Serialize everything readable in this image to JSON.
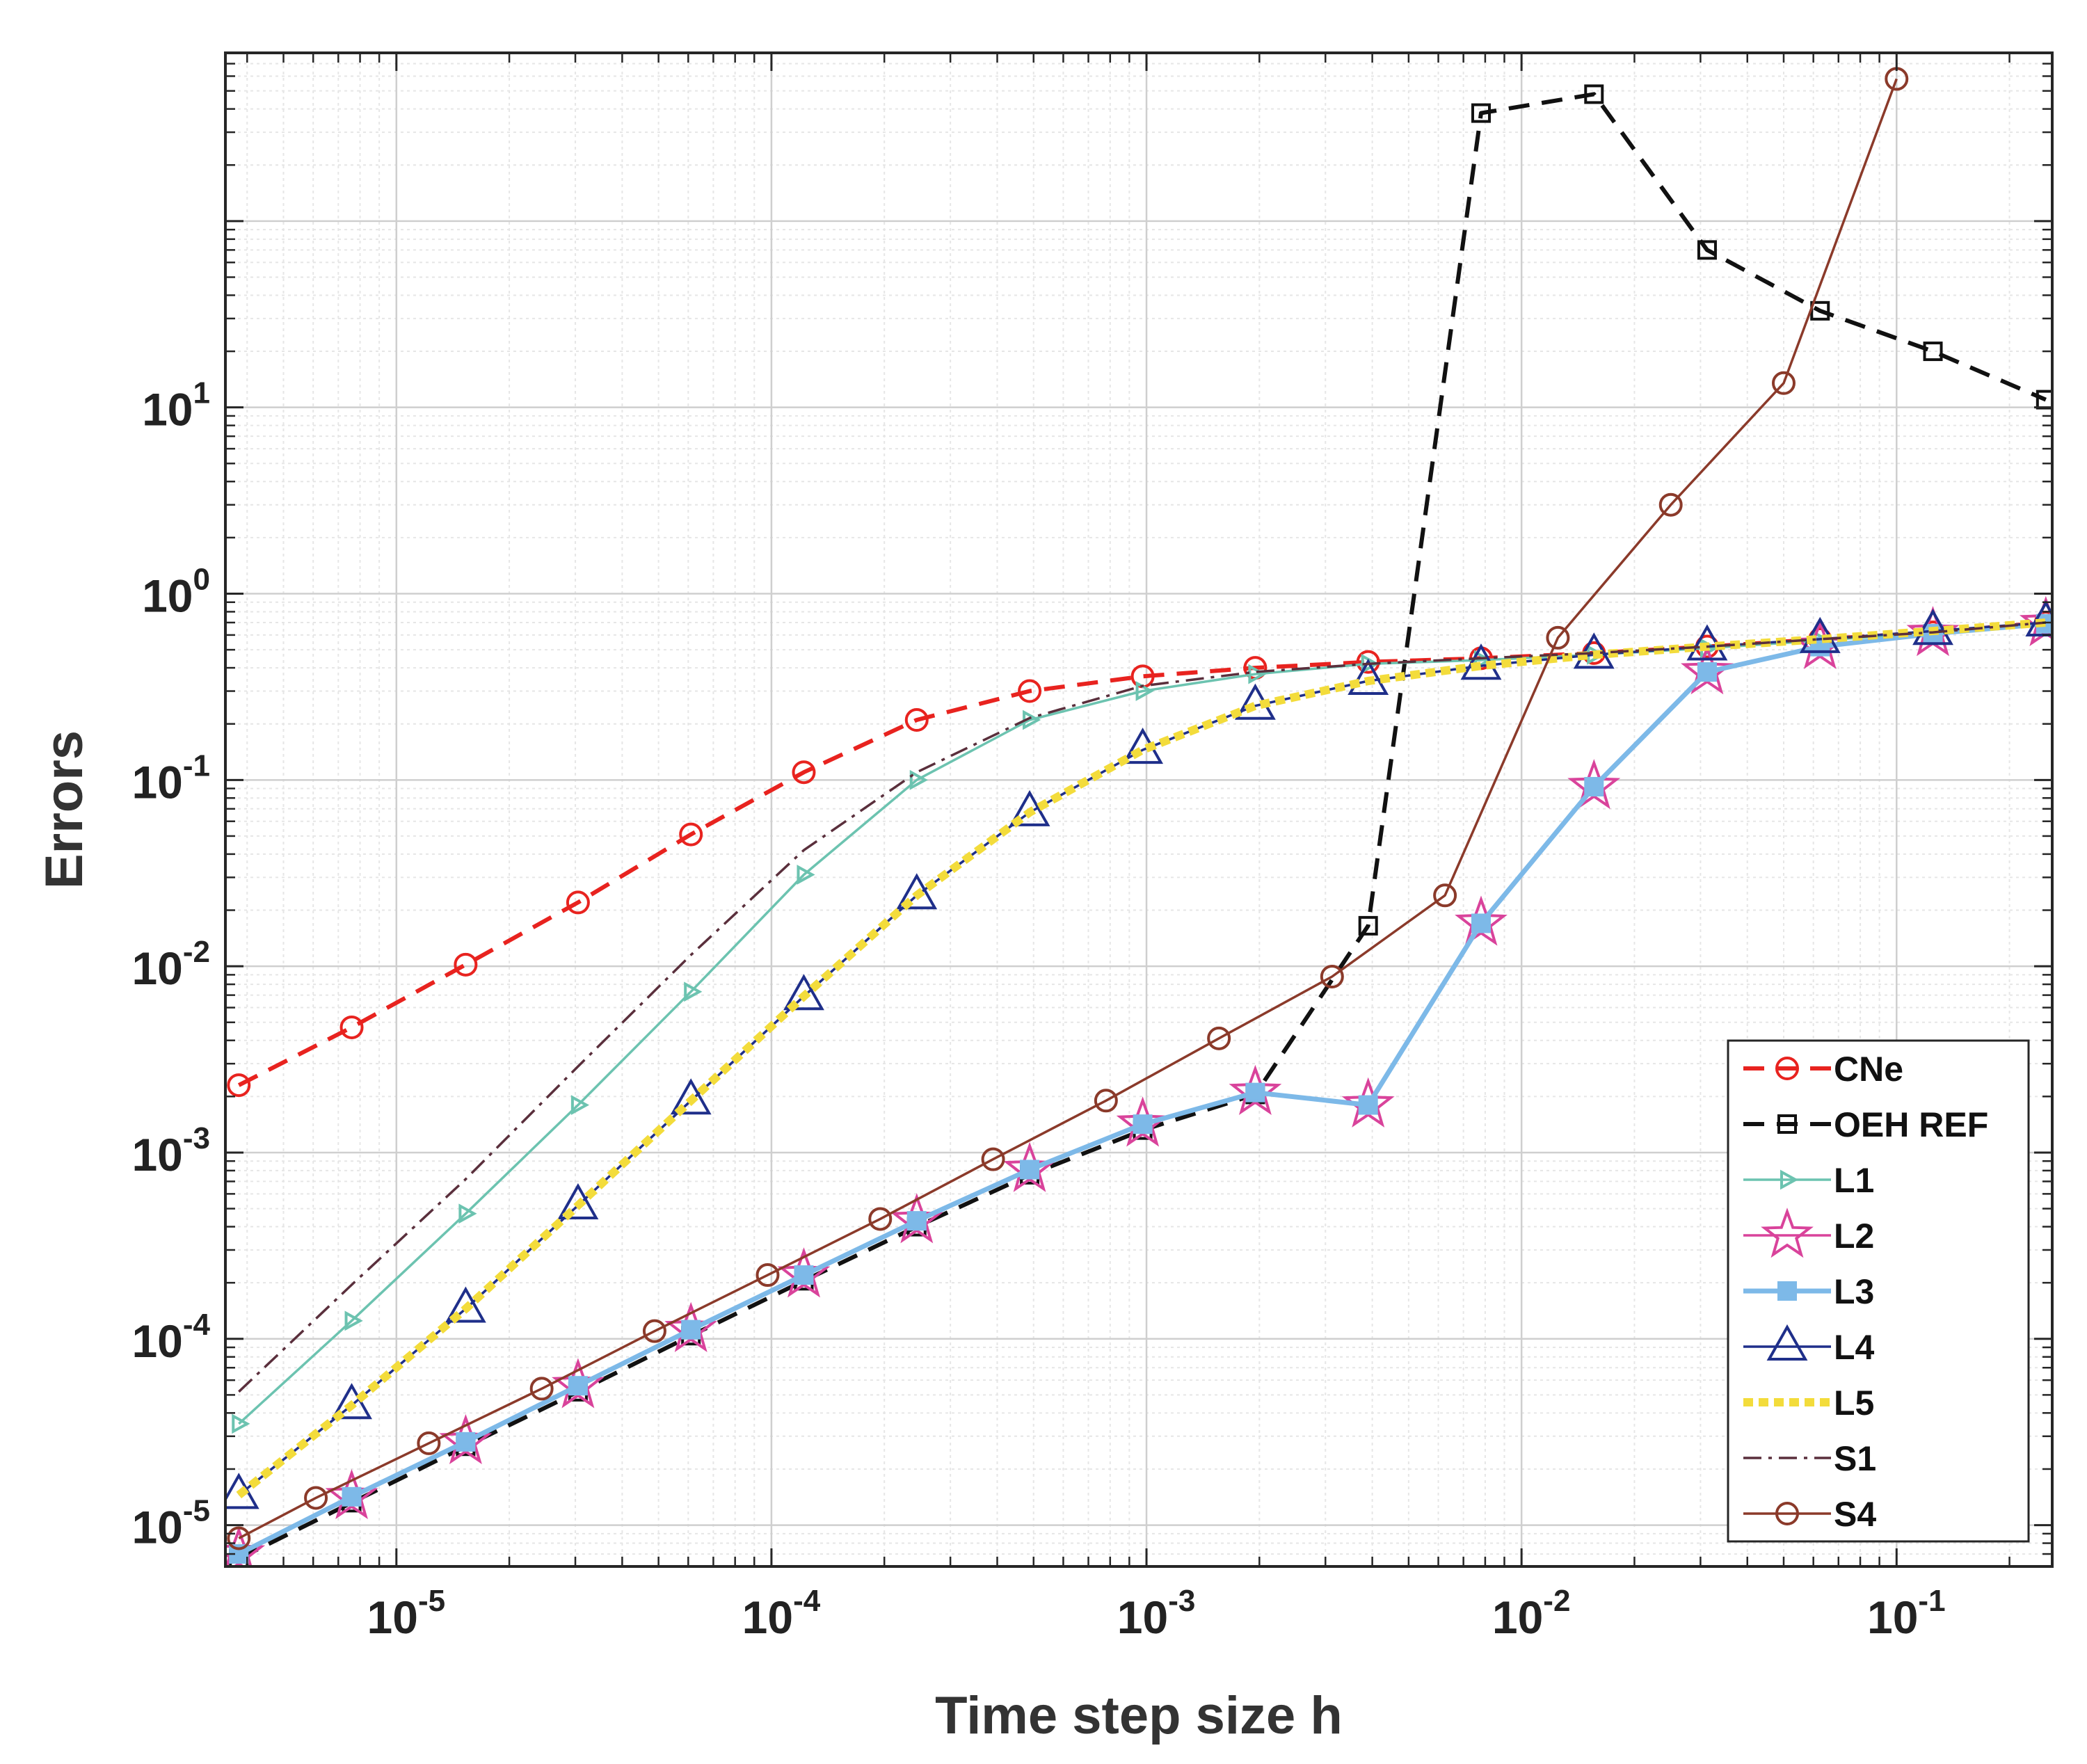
{
  "chart_data": {
    "type": "line",
    "title": "",
    "xlabel": "Time step size h",
    "ylabel": "Errors",
    "xscale": "log",
    "yscale": "log",
    "xlim": [
      3.5e-06,
      0.26
    ],
    "ylim": [
      6e-06,
      800
    ],
    "grid": true,
    "minor_grid": true,
    "legend_location": "bottom-right",
    "x_ticks": [
      {
        "value": 1e-05,
        "base": "10",
        "exp": "-5"
      },
      {
        "value": 0.0001,
        "base": "10",
        "exp": "-4"
      },
      {
        "value": 0.001,
        "base": "10",
        "exp": "-3"
      },
      {
        "value": 0.01,
        "base": "10",
        "exp": "-2"
      },
      {
        "value": 0.1,
        "base": "10",
        "exp": "-1"
      }
    ],
    "y_ticks": [
      {
        "value": 1e-05,
        "base": "10",
        "exp": "-5"
      },
      {
        "value": 0.0001,
        "base": "10",
        "exp": "-4"
      },
      {
        "value": 0.001,
        "base": "10",
        "exp": "-3"
      },
      {
        "value": 0.01,
        "base": "10",
        "exp": "-2"
      },
      {
        "value": 0.1,
        "base": "10",
        "exp": "-1"
      },
      {
        "value": 1,
        "base": "10",
        "exp": "0"
      },
      {
        "value": 10,
        "base": "10",
        "exp": "1"
      }
    ],
    "series": [
      {
        "name": "CNe",
        "color": "#e8231f",
        "dash": "dashed",
        "marker": "circle",
        "marker_fill": "none",
        "x": [
          3.8e-06,
          7.6e-06,
          1.53e-05,
          3.05e-05,
          6.1e-05,
          0.000122,
          0.000244,
          0.000488,
          0.000977,
          0.00195,
          0.0039,
          0.0078,
          0.0156,
          0.03125,
          0.0625,
          0.125,
          0.25
        ],
        "y": [
          0.0023,
          0.0047,
          0.0102,
          0.022,
          0.051,
          0.11,
          0.21,
          0.3,
          0.36,
          0.4,
          0.43,
          0.45,
          0.48,
          0.52,
          0.57,
          0.62,
          0.7
        ]
      },
      {
        "name": "OEH REF",
        "color": "#111111",
        "dash": "dashed",
        "marker": "square",
        "marker_fill": "none",
        "x": [
          3.8e-06,
          7.6e-06,
          1.53e-05,
          3.05e-05,
          6.1e-05,
          0.000122,
          0.000244,
          0.000488,
          0.000977,
          0.00195,
          0.0039,
          0.0078,
          0.0156,
          0.03125,
          0.0625,
          0.125,
          0.25
        ],
        "y": [
          6.6e-06,
          1.32e-05,
          2.65e-05,
          5.2e-05,
          0.000104,
          0.000205,
          0.0004,
          0.00076,
          0.00132,
          0.00205,
          0.0165,
          380,
          480,
          70,
          33,
          20,
          11
        ]
      },
      {
        "name": "L1",
        "color": "#6cc3b0",
        "dash": "solid",
        "marker": "triangle-right",
        "marker_fill": "none",
        "x": [
          3.8e-06,
          7.6e-06,
          1.53e-05,
          3.05e-05,
          6.1e-05,
          0.000122,
          0.000244,
          0.000488,
          0.000977,
          0.00195,
          0.0039,
          0.0078,
          0.0156,
          0.03125,
          0.0625,
          0.125,
          0.25
        ],
        "y": [
          3.5e-05,
          0.000125,
          0.00047,
          0.0018,
          0.0073,
          0.031,
          0.1,
          0.21,
          0.3,
          0.37,
          0.42,
          0.44,
          0.47,
          0.51,
          0.56,
          0.62,
          0.69
        ]
      },
      {
        "name": "L2",
        "color": "#d9439b",
        "dash": "solid",
        "marker": "star",
        "marker_fill": "none",
        "x": [
          3.8e-06,
          7.6e-06,
          1.53e-05,
          3.05e-05,
          6.1e-05,
          0.000122,
          0.000244,
          0.000488,
          0.000977,
          0.00195,
          0.0039,
          0.0078,
          0.0156,
          0.03125,
          0.0625,
          0.125,
          0.25
        ],
        "y": [
          7e-06,
          1.42e-05,
          2.8e-05,
          5.6e-05,
          0.000112,
          0.00022,
          0.00043,
          0.00081,
          0.00142,
          0.0021,
          0.0018,
          0.017,
          0.092,
          0.38,
          0.52,
          0.61,
          0.69
        ]
      },
      {
        "name": "L3",
        "color": "#7db9e8",
        "dash": "solid",
        "marker": "square",
        "marker_fill": "#7db9e8",
        "x": [
          3.8e-06,
          7.6e-06,
          1.53e-05,
          3.05e-05,
          6.1e-05,
          0.000122,
          0.000244,
          0.000488,
          0.000977,
          0.00195,
          0.0039,
          0.0078,
          0.0156,
          0.03125,
          0.0625,
          0.125,
          0.25
        ],
        "y": [
          7e-06,
          1.42e-05,
          2.8e-05,
          5.6e-05,
          0.000112,
          0.00022,
          0.00043,
          0.00081,
          0.00142,
          0.0021,
          0.0018,
          0.017,
          0.092,
          0.38,
          0.52,
          0.61,
          0.69
        ]
      },
      {
        "name": "L4",
        "color": "#1f2f8a",
        "dash": "solid",
        "marker": "triangle-up",
        "marker_fill": "none",
        "x": [
          3.8e-06,
          7.6e-06,
          1.53e-05,
          3.05e-05,
          6.1e-05,
          0.000122,
          0.000244,
          0.000488,
          0.000977,
          0.00195,
          0.0039,
          0.0078,
          0.0156,
          0.03125,
          0.0625,
          0.125,
          0.25
        ],
        "y": [
          1.45e-05,
          4.4e-05,
          0.000145,
          0.00052,
          0.0019,
          0.0069,
          0.024,
          0.067,
          0.145,
          0.25,
          0.34,
          0.41,
          0.47,
          0.52,
          0.57,
          0.63,
          0.7
        ]
      },
      {
        "name": "L5",
        "color": "#f3dc3b",
        "dash": "dotted",
        "marker": "none",
        "marker_fill": "none",
        "x": [
          3.8e-06,
          7.6e-06,
          1.53e-05,
          3.05e-05,
          6.1e-05,
          0.000122,
          0.000244,
          0.000488,
          0.000977,
          0.00195,
          0.0039,
          0.0078,
          0.0156,
          0.03125,
          0.0625,
          0.125,
          0.25
        ],
        "y": [
          1.45e-05,
          4.4e-05,
          0.000145,
          0.00052,
          0.0019,
          0.0069,
          0.024,
          0.067,
          0.145,
          0.25,
          0.34,
          0.41,
          0.47,
          0.52,
          0.57,
          0.63,
          0.7
        ]
      },
      {
        "name": "S1",
        "color": "#5a2f3c",
        "dash": "dashdot",
        "marker": "none",
        "marker_fill": "none",
        "x": [
          3.8e-06,
          7.6e-06,
          1.53e-05,
          3.05e-05,
          6.1e-05,
          0.000122,
          0.000244,
          0.000488,
          0.000977,
          0.00195,
          0.0039,
          0.0078,
          0.0156,
          0.03125,
          0.0625,
          0.125,
          0.25
        ],
        "y": [
          5.2e-05,
          0.000195,
          0.00072,
          0.0029,
          0.0115,
          0.042,
          0.11,
          0.215,
          0.32,
          0.38,
          0.42,
          0.45,
          0.48,
          0.52,
          0.57,
          0.62,
          0.7
        ]
      },
      {
        "name": "S4",
        "color": "#8b3a2a",
        "dash": "solid",
        "marker": "circle",
        "marker_fill": "none",
        "x": [
          3.8e-06,
          6.1e-06,
          1.22e-05,
          2.44e-05,
          4.88e-05,
          9.77e-05,
          0.000195,
          0.00039,
          0.00078,
          0.00156,
          0.003125,
          0.00625,
          0.0125,
          0.025,
          0.05,
          0.1
        ],
        "y": [
          8.5e-06,
          1.4e-05,
          2.75e-05,
          5.4e-05,
          0.00011,
          0.00022,
          0.00044,
          0.00092,
          0.0019,
          0.0041,
          0.0088,
          0.024,
          0.58,
          3.0,
          13.5,
          580
        ]
      }
    ]
  }
}
